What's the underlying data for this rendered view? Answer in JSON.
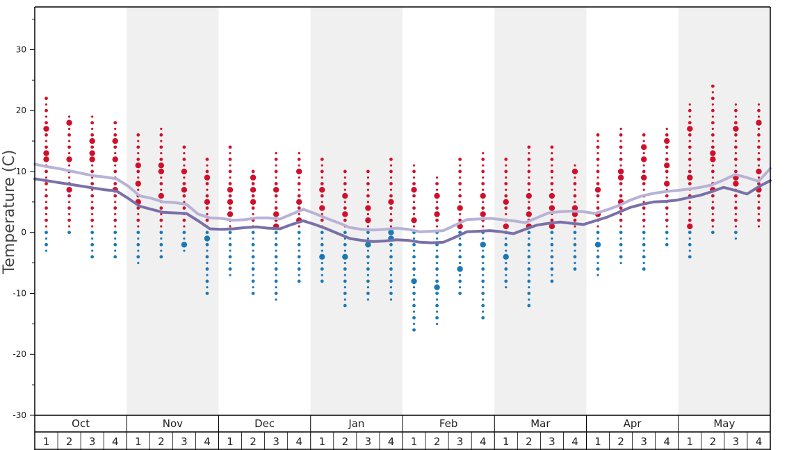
{
  "colors": {
    "band_shade": "#f0f0f0",
    "warm_dot": "#d0102a",
    "cold_dot": "#1a78b4",
    "high_line": "#b7b2d6",
    "low_line": "#7a70a8",
    "frame": "#000000"
  },
  "chart_data": {
    "type": "scatter",
    "ylabel": "Temperature (C)",
    "ylim": [
      -30,
      37
    ],
    "yticks": [
      -30,
      -20,
      -10,
      0,
      10,
      20,
      30
    ],
    "months": [
      "Oct",
      "Nov",
      "Dec",
      "Jan",
      "Feb",
      "Mar",
      "Apr",
      "May"
    ],
    "weeks": [
      "1",
      "2",
      "3",
      "4"
    ],
    "week_dots": [
      {
        "max": 22,
        "min": -3,
        "big": [
          17,
          13,
          12
        ]
      },
      {
        "max": 19,
        "min": 0,
        "big": [
          18,
          12,
          7
        ]
      },
      {
        "max": 19,
        "min": -4,
        "big": [
          15,
          13,
          12
        ]
      },
      {
        "max": 18,
        "min": -4,
        "big": [
          15,
          12,
          7
        ]
      },
      {
        "max": 16,
        "min": -5,
        "big": [
          11,
          8,
          5
        ]
      },
      {
        "max": 17,
        "min": -4,
        "big": [
          11,
          10,
          6
        ]
      },
      {
        "max": 14,
        "min": -3,
        "big": [
          10,
          7,
          -2
        ]
      },
      {
        "max": 12,
        "min": -10,
        "big": [
          9,
          5,
          -1
        ]
      },
      {
        "max": 14,
        "min": -7,
        "big": [
          7,
          5,
          3
        ]
      },
      {
        "max": 10,
        "min": -10,
        "big": [
          9,
          7,
          5
        ]
      },
      {
        "max": 13,
        "min": -11,
        "big": [
          7,
          3,
          1
        ]
      },
      {
        "max": 13,
        "min": -8,
        "big": [
          10,
          5,
          2
        ]
      },
      {
        "max": 12,
        "min": -8,
        "big": [
          7,
          4,
          -4
        ]
      },
      {
        "max": 10,
        "min": -12,
        "big": [
          6,
          3,
          -4
        ]
      },
      {
        "max": 10,
        "min": -11,
        "big": [
          4,
          2,
          -2
        ]
      },
      {
        "max": 12,
        "min": -11,
        "big": [
          5,
          0,
          -1
        ]
      },
      {
        "max": 11,
        "min": -16,
        "big": [
          7,
          2,
          -8
        ]
      },
      {
        "max": 9,
        "min": -15,
        "big": [
          6,
          3,
          -9
        ]
      },
      {
        "max": 12,
        "min": -10,
        "big": [
          4,
          1,
          -6
        ]
      },
      {
        "max": 13,
        "min": -14,
        "big": [
          6,
          3,
          -2
        ]
      },
      {
        "max": 12,
        "min": -9,
        "big": [
          5,
          1,
          -4
        ]
      },
      {
        "max": 14,
        "min": -12,
        "big": [
          6,
          3,
          1
        ]
      },
      {
        "max": 14,
        "min": -8,
        "big": [
          6,
          4,
          1
        ]
      },
      {
        "max": 11,
        "min": -6,
        "big": [
          10,
          4,
          3
        ]
      },
      {
        "max": 16,
        "min": -7,
        "big": [
          7,
          3,
          -2
        ]
      },
      {
        "max": 17,
        "min": -5,
        "big": [
          10,
          9,
          5
        ]
      },
      {
        "max": 16,
        "min": -6,
        "big": [
          14,
          12,
          9
        ]
      },
      {
        "max": 17,
        "min": -2,
        "big": [
          15,
          11,
          8
        ]
      },
      {
        "max": 21,
        "min": -4,
        "big": [
          17,
          9,
          1
        ]
      },
      {
        "max": 24,
        "min": 0,
        "big": [
          13,
          12,
          7
        ]
      },
      {
        "max": 21,
        "min": -1,
        "big": [
          17,
          9,
          8
        ]
      },
      {
        "max": 21,
        "min": 1,
        "big": [
          18,
          10,
          7
        ]
      }
    ],
    "series": [
      {
        "values": [
          11.2,
          10.8,
          10.5,
          10.1,
          9.7,
          9.3,
          9.1,
          8.8,
          7.6,
          6.0,
          5.6,
          5.0,
          4.9,
          4.6,
          3.0,
          2.4,
          2.3,
          2.0,
          2.1,
          2.4,
          2.4,
          2.2,
          3.0,
          3.8,
          3.1,
          2.3,
          1.6,
          0.8,
          0.5,
          0.4,
          0.5,
          0.7,
          0.5,
          0.1,
          0.2,
          0.3,
          1.2,
          2.1,
          2.2,
          2.3,
          2.1,
          1.9,
          1.6,
          2.4,
          3.2,
          3.4,
          3.5,
          3.4,
          3.1,
          3.7,
          4.4,
          5.3,
          6.0,
          6.4,
          6.7,
          6.9,
          7.1,
          7.4,
          7.8,
          8.6,
          9.5,
          9.0,
          8.4,
          10.5
        ]
      },
      {
        "values": [
          8.8,
          8.5,
          8.2,
          7.9,
          7.6,
          7.3,
          7.0,
          6.8,
          5.6,
          4.3,
          3.8,
          3.3,
          3.2,
          3.1,
          1.9,
          0.6,
          0.5,
          0.6,
          0.8,
          0.9,
          0.7,
          0.6,
          1.3,
          1.9,
          1.3,
          0.6,
          -0.2,
          -1.0,
          -1.3,
          -1.5,
          -1.4,
          -1.2,
          -1.3,
          -1.6,
          -1.7,
          -1.6,
          -0.8,
          0.1,
          0.2,
          0.3,
          0.1,
          -0.2,
          0.5,
          1.2,
          1.5,
          1.7,
          1.5,
          1.3,
          1.9,
          2.5,
          3.3,
          4.1,
          4.6,
          5.0,
          5.1,
          5.3,
          5.7,
          6.1,
          6.7,
          7.4,
          6.9,
          6.3,
          7.5,
          8.5
        ]
      }
    ]
  }
}
